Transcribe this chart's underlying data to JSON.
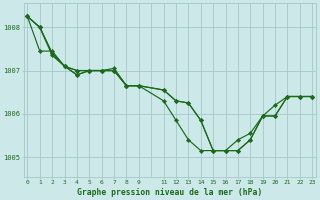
{
  "bg_color": "#cce8e8",
  "grid_color": "#aacccc",
  "line_color": "#1a6b1a",
  "marker_color": "#1a6b1a",
  "title": "Graphe pression niveau de la mer (hPa)",
  "title_color": "#1a6b1a",
  "tick_color": "#1a6b1a",
  "ylim": [
    1004.55,
    1008.55
  ],
  "xlim": [
    -0.3,
    23.3
  ],
  "yticks": [
    1005,
    1006,
    1007,
    1008
  ],
  "xtick_positions": [
    0,
    1,
    2,
    3,
    4,
    5,
    6,
    7,
    8,
    9,
    11,
    12,
    13,
    14,
    15,
    16,
    17,
    18,
    19,
    20,
    21,
    22,
    23
  ],
  "xtick_labels": [
    "0",
    "1",
    "2",
    "3",
    "4",
    "5",
    "6",
    "7",
    "8",
    "9",
    "11",
    "12",
    "13",
    "14",
    "15",
    "16",
    "17",
    "18",
    "19",
    "20",
    "21",
    "22",
    "23"
  ],
  "series": [
    {
      "x": [
        0,
        1,
        2,
        3,
        4,
        5,
        6,
        7,
        8,
        9,
        11,
        12,
        13,
        14,
        15,
        16,
        17,
        18,
        19,
        20,
        21,
        22,
        23
      ],
      "y": [
        1008.25,
        1008.0,
        1007.4,
        1007.1,
        1006.9,
        1007.0,
        1007.0,
        1007.0,
        1006.65,
        1006.65,
        1006.55,
        1006.3,
        1006.25,
        1005.85,
        1005.15,
        1005.15,
        1005.15,
        1005.4,
        1005.95,
        1005.95,
        1006.4,
        1006.4,
        1006.4
      ]
    },
    {
      "x": [
        0,
        1,
        2,
        3,
        4,
        5,
        6,
        7,
        8,
        9
      ],
      "y": [
        1008.25,
        1008.0,
        1007.35,
        1007.1,
        1007.0,
        1007.0,
        1007.0,
        1007.0,
        1006.65,
        1006.65
      ]
    },
    {
      "x": [
        0,
        1,
        2,
        3,
        4,
        5,
        6,
        7,
        8,
        9,
        11,
        12,
        13,
        14,
        15,
        16,
        17,
        18,
        19,
        20,
        21,
        22,
        23
      ],
      "y": [
        1008.25,
        1008.0,
        1007.4,
        1007.1,
        1007.0,
        1007.0,
        1007.0,
        1007.05,
        1006.65,
        1006.65,
        1006.3,
        1005.85,
        1005.4,
        1005.15,
        1005.15,
        1005.15,
        1005.4,
        1005.55,
        1005.95,
        1006.2,
        1006.4,
        1006.4,
        1006.4
      ]
    },
    {
      "x": [
        0,
        1,
        2,
        3,
        4,
        5,
        6,
        7,
        8,
        9,
        11,
        12,
        13,
        14,
        15,
        16,
        17,
        18,
        19,
        20,
        21,
        22,
        23
      ],
      "y": [
        1008.25,
        1007.45,
        1007.45,
        1007.1,
        1006.9,
        1007.0,
        1007.0,
        1007.0,
        1006.65,
        1006.65,
        1006.55,
        1006.3,
        1006.25,
        1005.85,
        1005.15,
        1005.15,
        1005.15,
        1005.4,
        1005.95,
        1005.95,
        1006.4,
        1006.4,
        1006.4
      ]
    }
  ],
  "grid_xticks_all": [
    0,
    1,
    2,
    3,
    4,
    5,
    6,
    7,
    8,
    9,
    10,
    11,
    12,
    13,
    14,
    15,
    16,
    17,
    18,
    19,
    20,
    21,
    22,
    23
  ]
}
